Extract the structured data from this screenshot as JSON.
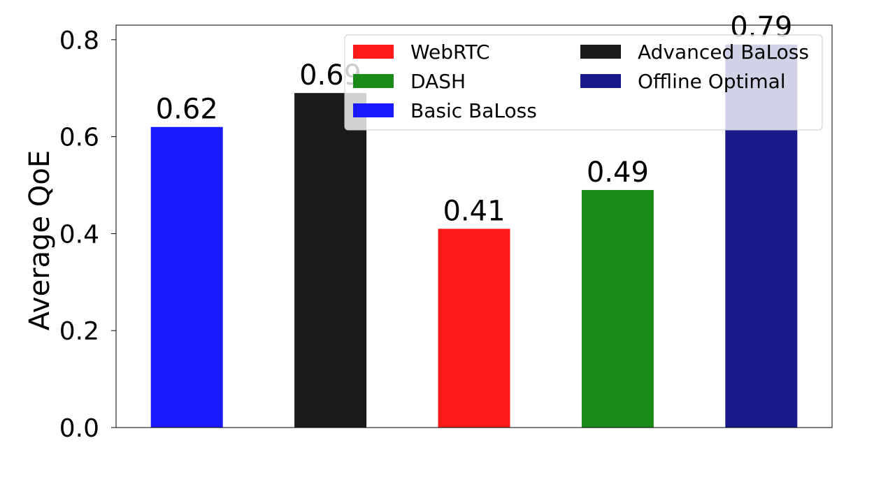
{
  "chart_data": {
    "type": "bar",
    "ylabel": "Average QoE",
    "ylim": [
      0,
      0.83
    ],
    "yticks": [
      "0.0",
      "0.2",
      "0.4",
      "0.6",
      "0.8"
    ],
    "grid": false,
    "legend_position": "top-right",
    "bars": [
      {
        "name": "Basic BaLoss",
        "value": 0.62,
        "label": "0.62",
        "color": "#1a1aff"
      },
      {
        "name": "Advanced BaLoss",
        "value": 0.69,
        "label": "0.69",
        "color": "#1a1a1a"
      },
      {
        "name": "WebRTC",
        "value": 0.41,
        "label": "0.41",
        "color": "#ff1a1a"
      },
      {
        "name": "DASH",
        "value": 0.49,
        "label": "0.49",
        "color": "#1a8a1a"
      },
      {
        "name": "Offline Optimal",
        "value": 0.79,
        "label": "0.79",
        "color": "#1a1a8c"
      }
    ],
    "legend": [
      {
        "name": "WebRTC",
        "color": "#ff1a1a"
      },
      {
        "name": "DASH",
        "color": "#1a8a1a"
      },
      {
        "name": "Basic BaLoss",
        "color": "#1a1aff"
      },
      {
        "name": "Advanced BaLoss",
        "color": "#1a1a1a"
      },
      {
        "name": "Offline Optimal",
        "color": "#1a1a8c"
      }
    ]
  }
}
